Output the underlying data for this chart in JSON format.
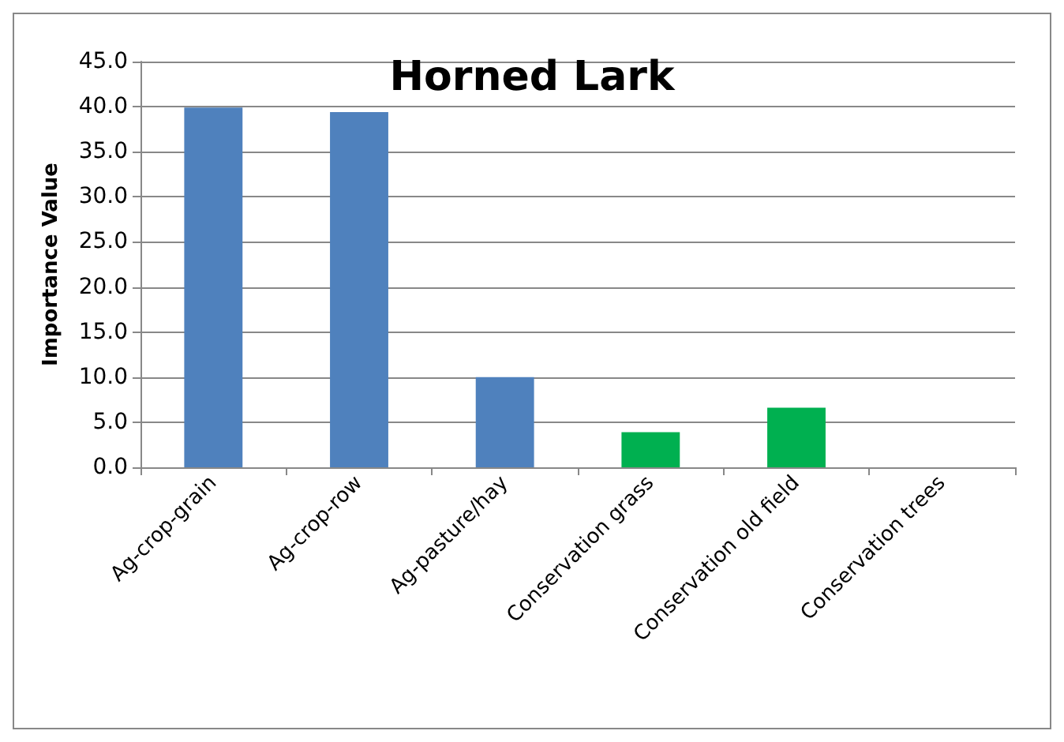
{
  "chart_data": {
    "type": "bar",
    "title": "Horned Lark",
    "ylabel": "Importance Value",
    "categories": [
      "Ag-crop-grain",
      "Ag-crop-row",
      "Ag-pasture/hay",
      "Conservation grass",
      "Conservation old field",
      "Conservation trees"
    ],
    "values": [
      39.9,
      39.4,
      10.0,
      3.9,
      6.6,
      0
    ],
    "colors": [
      "#4f81bd",
      "#4f81bd",
      "#4f81bd",
      "#00b050",
      "#00b050",
      "#00b050"
    ],
    "ylim": [
      0,
      45
    ],
    "yticks": [
      {
        "value": 0,
        "label": "0.0"
      },
      {
        "value": 5,
        "label": "5.0"
      },
      {
        "value": 10,
        "label": "10.0"
      },
      {
        "value": 15,
        "label": "15.0"
      },
      {
        "value": 20,
        "label": "20.0"
      },
      {
        "value": 25,
        "label": "25.0"
      },
      {
        "value": 30,
        "label": "30.0"
      },
      {
        "value": 35,
        "label": "35.0"
      },
      {
        "value": 40,
        "label": "40.0"
      },
      {
        "value": 45,
        "label": "45.0"
      }
    ],
    "grid": "y"
  }
}
